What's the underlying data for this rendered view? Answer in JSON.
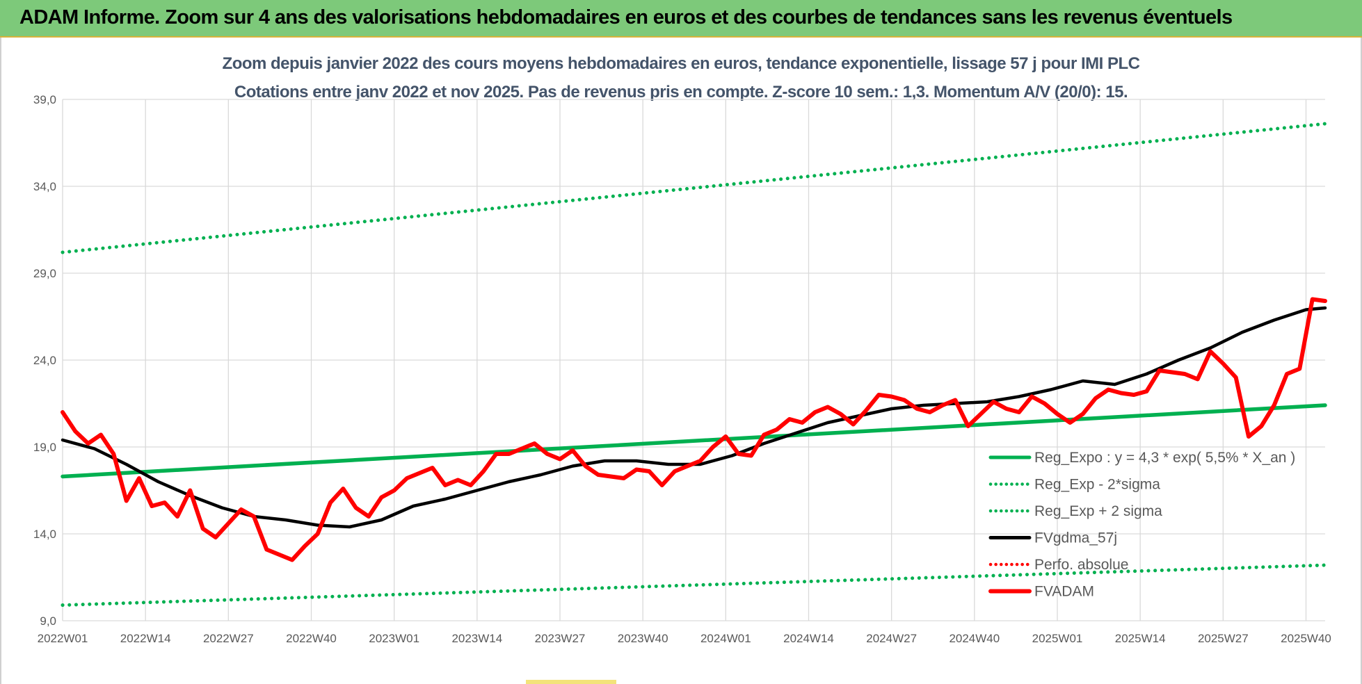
{
  "banner": {
    "title": "ADAM Informe. Zoom sur 4 ans des valorisations hebdomadaires en euros et des courbes de tendances sans les revenus éventuels"
  },
  "chart_data": {
    "type": "line",
    "title": "Zoom depuis janvier 2022 des cours moyens hebdomadaires en euros, tendance exponentielle, lissage 57 j pour IMI PLC",
    "subtitle": "Cotations entre janv 2022 et nov 2025. Pas de revenus pris en compte. Z-score 10 sem.: 1,3. Momentum A/V (20/0): 15.",
    "xlabel": "",
    "ylabel": "",
    "ylim": [
      9,
      39
    ],
    "y_ticks": [
      "9,0",
      "14,0",
      "19,0",
      "24,0",
      "29,0",
      "34,0",
      "39,0"
    ],
    "x_range": [
      0,
      198
    ],
    "x_ticks": [
      "2022W01",
      "2022W14",
      "2022W27",
      "2022W40",
      "2023W01",
      "2023W14",
      "2023W27",
      "2023W40",
      "2024W01",
      "2024W14",
      "2024W27",
      "2024W40",
      "2025W01",
      "2025W14",
      "2025W27",
      "2025W40"
    ],
    "grid": true,
    "legend_position": "right",
    "series": [
      {
        "name": "Reg_Expo : y = 4,3 * exp( 5,5% *  X_an )",
        "color": "#00b050",
        "style": "solid",
        "x": [
          0,
          198
        ],
        "y": [
          17.3,
          21.4
        ]
      },
      {
        "name": "Reg_Exp - 2*sigma",
        "color": "#00b050",
        "style": "dotted",
        "x": [
          0,
          198
        ],
        "y": [
          9.9,
          12.2
        ]
      },
      {
        "name": "Reg_Exp + 2 sigma",
        "color": "#00b050",
        "style": "dotted",
        "x": [
          0,
          198
        ],
        "y": [
          30.2,
          37.6
        ]
      },
      {
        "name": "FVgdma_57j",
        "color": "#000000",
        "style": "solid",
        "x": [
          0,
          5,
          10,
          15,
          20,
          25,
          30,
          35,
          40,
          45,
          50,
          55,
          60,
          65,
          70,
          75,
          80,
          85,
          90,
          95,
          100,
          105,
          110,
          115,
          120,
          125,
          130,
          135,
          140,
          145,
          150,
          155,
          160,
          165,
          170,
          175,
          180,
          185,
          190,
          195,
          198
        ],
        "y": [
          19.4,
          18.9,
          18.0,
          17.0,
          16.2,
          15.5,
          15.0,
          14.8,
          14.5,
          14.4,
          14.8,
          15.6,
          16.0,
          16.5,
          17.0,
          17.4,
          17.9,
          18.2,
          18.2,
          18.0,
          18.0,
          18.5,
          19.2,
          19.8,
          20.4,
          20.8,
          21.2,
          21.4,
          21.5,
          21.6,
          21.9,
          22.3,
          22.8,
          22.6,
          23.2,
          24.0,
          24.7,
          25.6,
          26.3,
          26.9,
          27.0
        ]
      },
      {
        "name": "Perfo. absolue",
        "color": "#ff0000",
        "style": "dotted",
        "x": [],
        "y": []
      },
      {
        "name": "FVADAM",
        "color": "#ff0000",
        "style": "solid",
        "x": [
          0,
          2,
          4,
          6,
          8,
          10,
          12,
          14,
          16,
          18,
          20,
          22,
          24,
          26,
          28,
          30,
          32,
          34,
          36,
          38,
          40,
          42,
          44,
          46,
          48,
          50,
          52,
          54,
          56,
          58,
          60,
          62,
          64,
          66,
          68,
          70,
          72,
          74,
          76,
          78,
          80,
          82,
          84,
          86,
          88,
          90,
          92,
          94,
          96,
          98,
          100,
          102,
          104,
          106,
          108,
          110,
          112,
          114,
          116,
          118,
          120,
          122,
          124,
          126,
          128,
          130,
          132,
          134,
          136,
          138,
          140,
          142,
          144,
          146,
          148,
          150,
          152,
          154,
          156,
          158,
          160,
          162,
          164,
          166,
          168,
          170,
          172,
          174,
          176,
          178,
          180,
          182,
          184,
          186,
          188,
          190,
          192,
          194,
          196,
          198
        ],
        "y": [
          21.0,
          19.9,
          19.2,
          19.7,
          18.6,
          15.9,
          17.2,
          15.6,
          15.8,
          15.0,
          16.5,
          14.3,
          13.8,
          14.6,
          15.4,
          15.0,
          13.1,
          12.8,
          12.5,
          13.3,
          14.0,
          15.8,
          16.6,
          15.5,
          15.0,
          16.1,
          16.5,
          17.2,
          17.5,
          17.8,
          16.8,
          17.1,
          16.8,
          17.6,
          18.6,
          18.6,
          18.9,
          19.2,
          18.6,
          18.3,
          18.8,
          17.9,
          17.4,
          17.3,
          17.2,
          17.7,
          17.6,
          16.8,
          17.6,
          17.9,
          18.2,
          19.0,
          19.6,
          18.6,
          18.5,
          19.7,
          20.0,
          20.6,
          20.4,
          21.0,
          21.3,
          20.9,
          20.3,
          21.1,
          22.0,
          21.9,
          21.7,
          21.2,
          21.0,
          21.4,
          21.7,
          20.2,
          20.9,
          21.6,
          21.2,
          21.0,
          21.9,
          21.5,
          20.9,
          20.4,
          20.9,
          21.8,
          22.3,
          22.1,
          22.0,
          22.2,
          23.4,
          23.3,
          23.2,
          22.9,
          24.5,
          23.8,
          23.0,
          19.6,
          20.2,
          21.4,
          23.2,
          23.5,
          27.5,
          27.4
        ]
      }
    ]
  }
}
